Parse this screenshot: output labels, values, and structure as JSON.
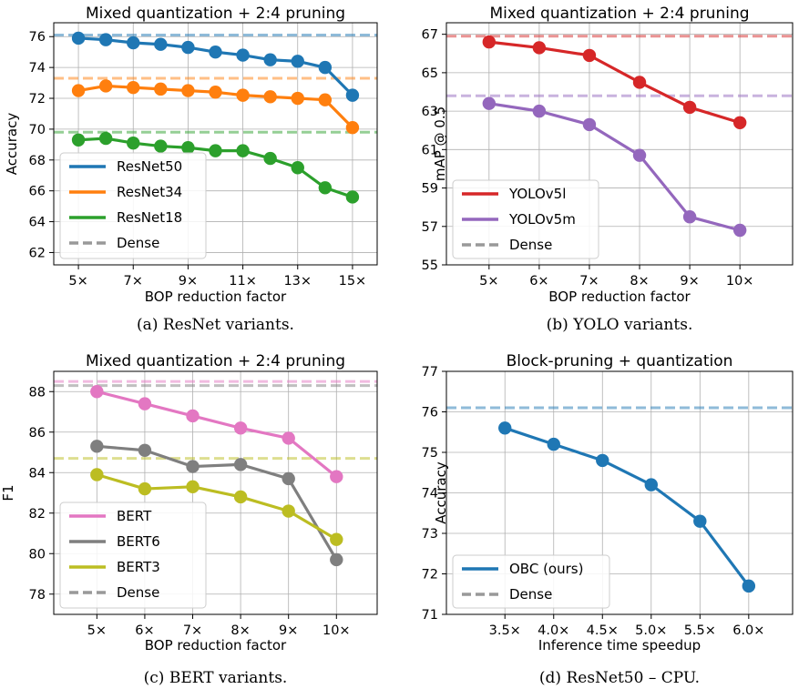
{
  "chart_data": [
    {
      "type": "line",
      "title": "Mixed quantization + 2:4 pruning",
      "caption": "(a) ResNet variants.",
      "xlabel": "BOP reduction factor",
      "ylabel": "Accuracy",
      "x": [
        5,
        6,
        7,
        8,
        9,
        10,
        11,
        12,
        13,
        14,
        15
      ],
      "xlim": [
        4.1,
        15.9
      ],
      "ylim": [
        61.2,
        76.9
      ],
      "xticks": [
        5,
        7,
        9,
        11,
        13,
        15
      ],
      "xtick_labels": [
        "5×",
        "7×",
        "9×",
        "11×",
        "13×",
        "15×"
      ],
      "yticks": [
        62,
        64,
        66,
        68,
        70,
        72,
        74,
        76
      ],
      "ytick_labels": [
        "62",
        "64",
        "66",
        "68",
        "70",
        "72",
        "74",
        "76"
      ],
      "grid": true,
      "legend_position": "lower-left",
      "series": [
        {
          "name": "ResNet50",
          "color": "#1f77b4",
          "values": [
            75.9,
            75.8,
            75.6,
            75.5,
            75.3,
            75.0,
            74.8,
            74.5,
            74.4,
            74.0,
            72.2
          ],
          "dense": 76.1
        },
        {
          "name": "ResNet34",
          "color": "#ff7f0e",
          "values": [
            72.5,
            72.8,
            72.7,
            72.6,
            72.5,
            72.4,
            72.2,
            72.1,
            72.0,
            71.9,
            70.1
          ],
          "dense": 73.3
        },
        {
          "name": "ResNet18",
          "color": "#2ca02c",
          "values": [
            69.3,
            69.4,
            69.1,
            68.9,
            68.8,
            68.6,
            68.6,
            68.1,
            67.5,
            66.2,
            65.6
          ],
          "dense": 69.8
        }
      ],
      "dense_label": "Dense"
    },
    {
      "type": "line",
      "title": "Mixed quantization + 2:4 pruning",
      "caption": "(b) YOLO variants.",
      "xlabel": "BOP reduction factor",
      "ylabel": "mAP @ 0.5",
      "x": [
        5,
        6,
        7,
        8,
        9,
        10
      ],
      "xlim": [
        4.15,
        11.05
      ],
      "ylim": [
        55,
        67.6
      ],
      "xticks": [
        5,
        6,
        7,
        8,
        9,
        10
      ],
      "xtick_labels": [
        "5×",
        "6×",
        "7×",
        "8×",
        "9×",
        "10×"
      ],
      "yticks": [
        55,
        57,
        59,
        61,
        63,
        65,
        67
      ],
      "ytick_labels": [
        "55",
        "57",
        "59",
        "61",
        "63",
        "65",
        "67"
      ],
      "grid": true,
      "legend_position": "lower-left",
      "series": [
        {
          "name": "YOLOv5l",
          "color": "#d62728",
          "values": [
            66.6,
            66.3,
            65.9,
            64.5,
            63.2,
            62.4
          ],
          "dense": 66.9
        },
        {
          "name": "YOLOv5m",
          "color": "#9467bd",
          "values": [
            63.4,
            63.0,
            62.3,
            60.7,
            57.5,
            56.8
          ],
          "dense": 63.8
        }
      ],
      "dense_label": "Dense"
    },
    {
      "type": "line",
      "title": "Mixed quantization + 2:4 pruning",
      "caption": "(c) BERT variants.",
      "xlabel": "BOP reduction factor",
      "ylabel": "F1",
      "x": [
        5,
        6,
        7,
        8,
        9,
        10
      ],
      "xlim": [
        4.1,
        10.85
      ],
      "ylim": [
        77.0,
        89.0
      ],
      "xticks": [
        5,
        6,
        7,
        8,
        9,
        10
      ],
      "xtick_labels": [
        "5×",
        "6×",
        "7×",
        "8×",
        "9×",
        "10×"
      ],
      "yticks": [
        78,
        80,
        82,
        84,
        86,
        88
      ],
      "ytick_labels": [
        "78",
        "80",
        "82",
        "84",
        "86",
        "88"
      ],
      "grid": true,
      "legend_position": "lower-left",
      "series": [
        {
          "name": "BERT",
          "color": "#e377c2",
          "values": [
            88.0,
            87.4,
            86.8,
            86.2,
            85.7,
            83.8
          ],
          "dense": 88.5
        },
        {
          "name": "BERT6",
          "color": "#7f7f7f",
          "values": [
            85.3,
            85.1,
            84.3,
            84.4,
            83.7,
            79.7
          ],
          "dense": 88.3
        },
        {
          "name": "BERT3",
          "color": "#bcbd22",
          "values": [
            83.9,
            83.2,
            83.3,
            82.8,
            82.1,
            80.7
          ],
          "dense": 84.7
        }
      ],
      "dense_label": "Dense"
    },
    {
      "type": "line",
      "title": "Block-pruning + quantization",
      "caption": "(d) ResNet50 – CPU.",
      "xlabel": "Inference time speedup",
      "ylabel": "Accuracy",
      "x": [
        3.5,
        4.0,
        4.5,
        5.0,
        5.5,
        6.0
      ],
      "xlim": [
        2.9,
        6.45
      ],
      "ylim": [
        71,
        77
      ],
      "xticks": [
        3.5,
        4.0,
        4.5,
        5.0,
        5.5,
        6.0
      ],
      "xtick_labels": [
        "3.5×",
        "4.0×",
        "4.5×",
        "5.0×",
        "5.5×",
        "6.0×"
      ],
      "yticks": [
        71,
        72,
        73,
        74,
        75,
        76,
        77
      ],
      "ytick_labels": [
        "71",
        "72",
        "73",
        "74",
        "75",
        "76",
        "77"
      ],
      "grid": true,
      "legend_position": "lower-left",
      "series": [
        {
          "name": "OBC (ours)",
          "color": "#1f77b4",
          "values": [
            75.6,
            75.2,
            74.8,
            74.2,
            73.3,
            71.7
          ],
          "dense": 76.1
        }
      ],
      "dense_label": "Dense"
    }
  ]
}
